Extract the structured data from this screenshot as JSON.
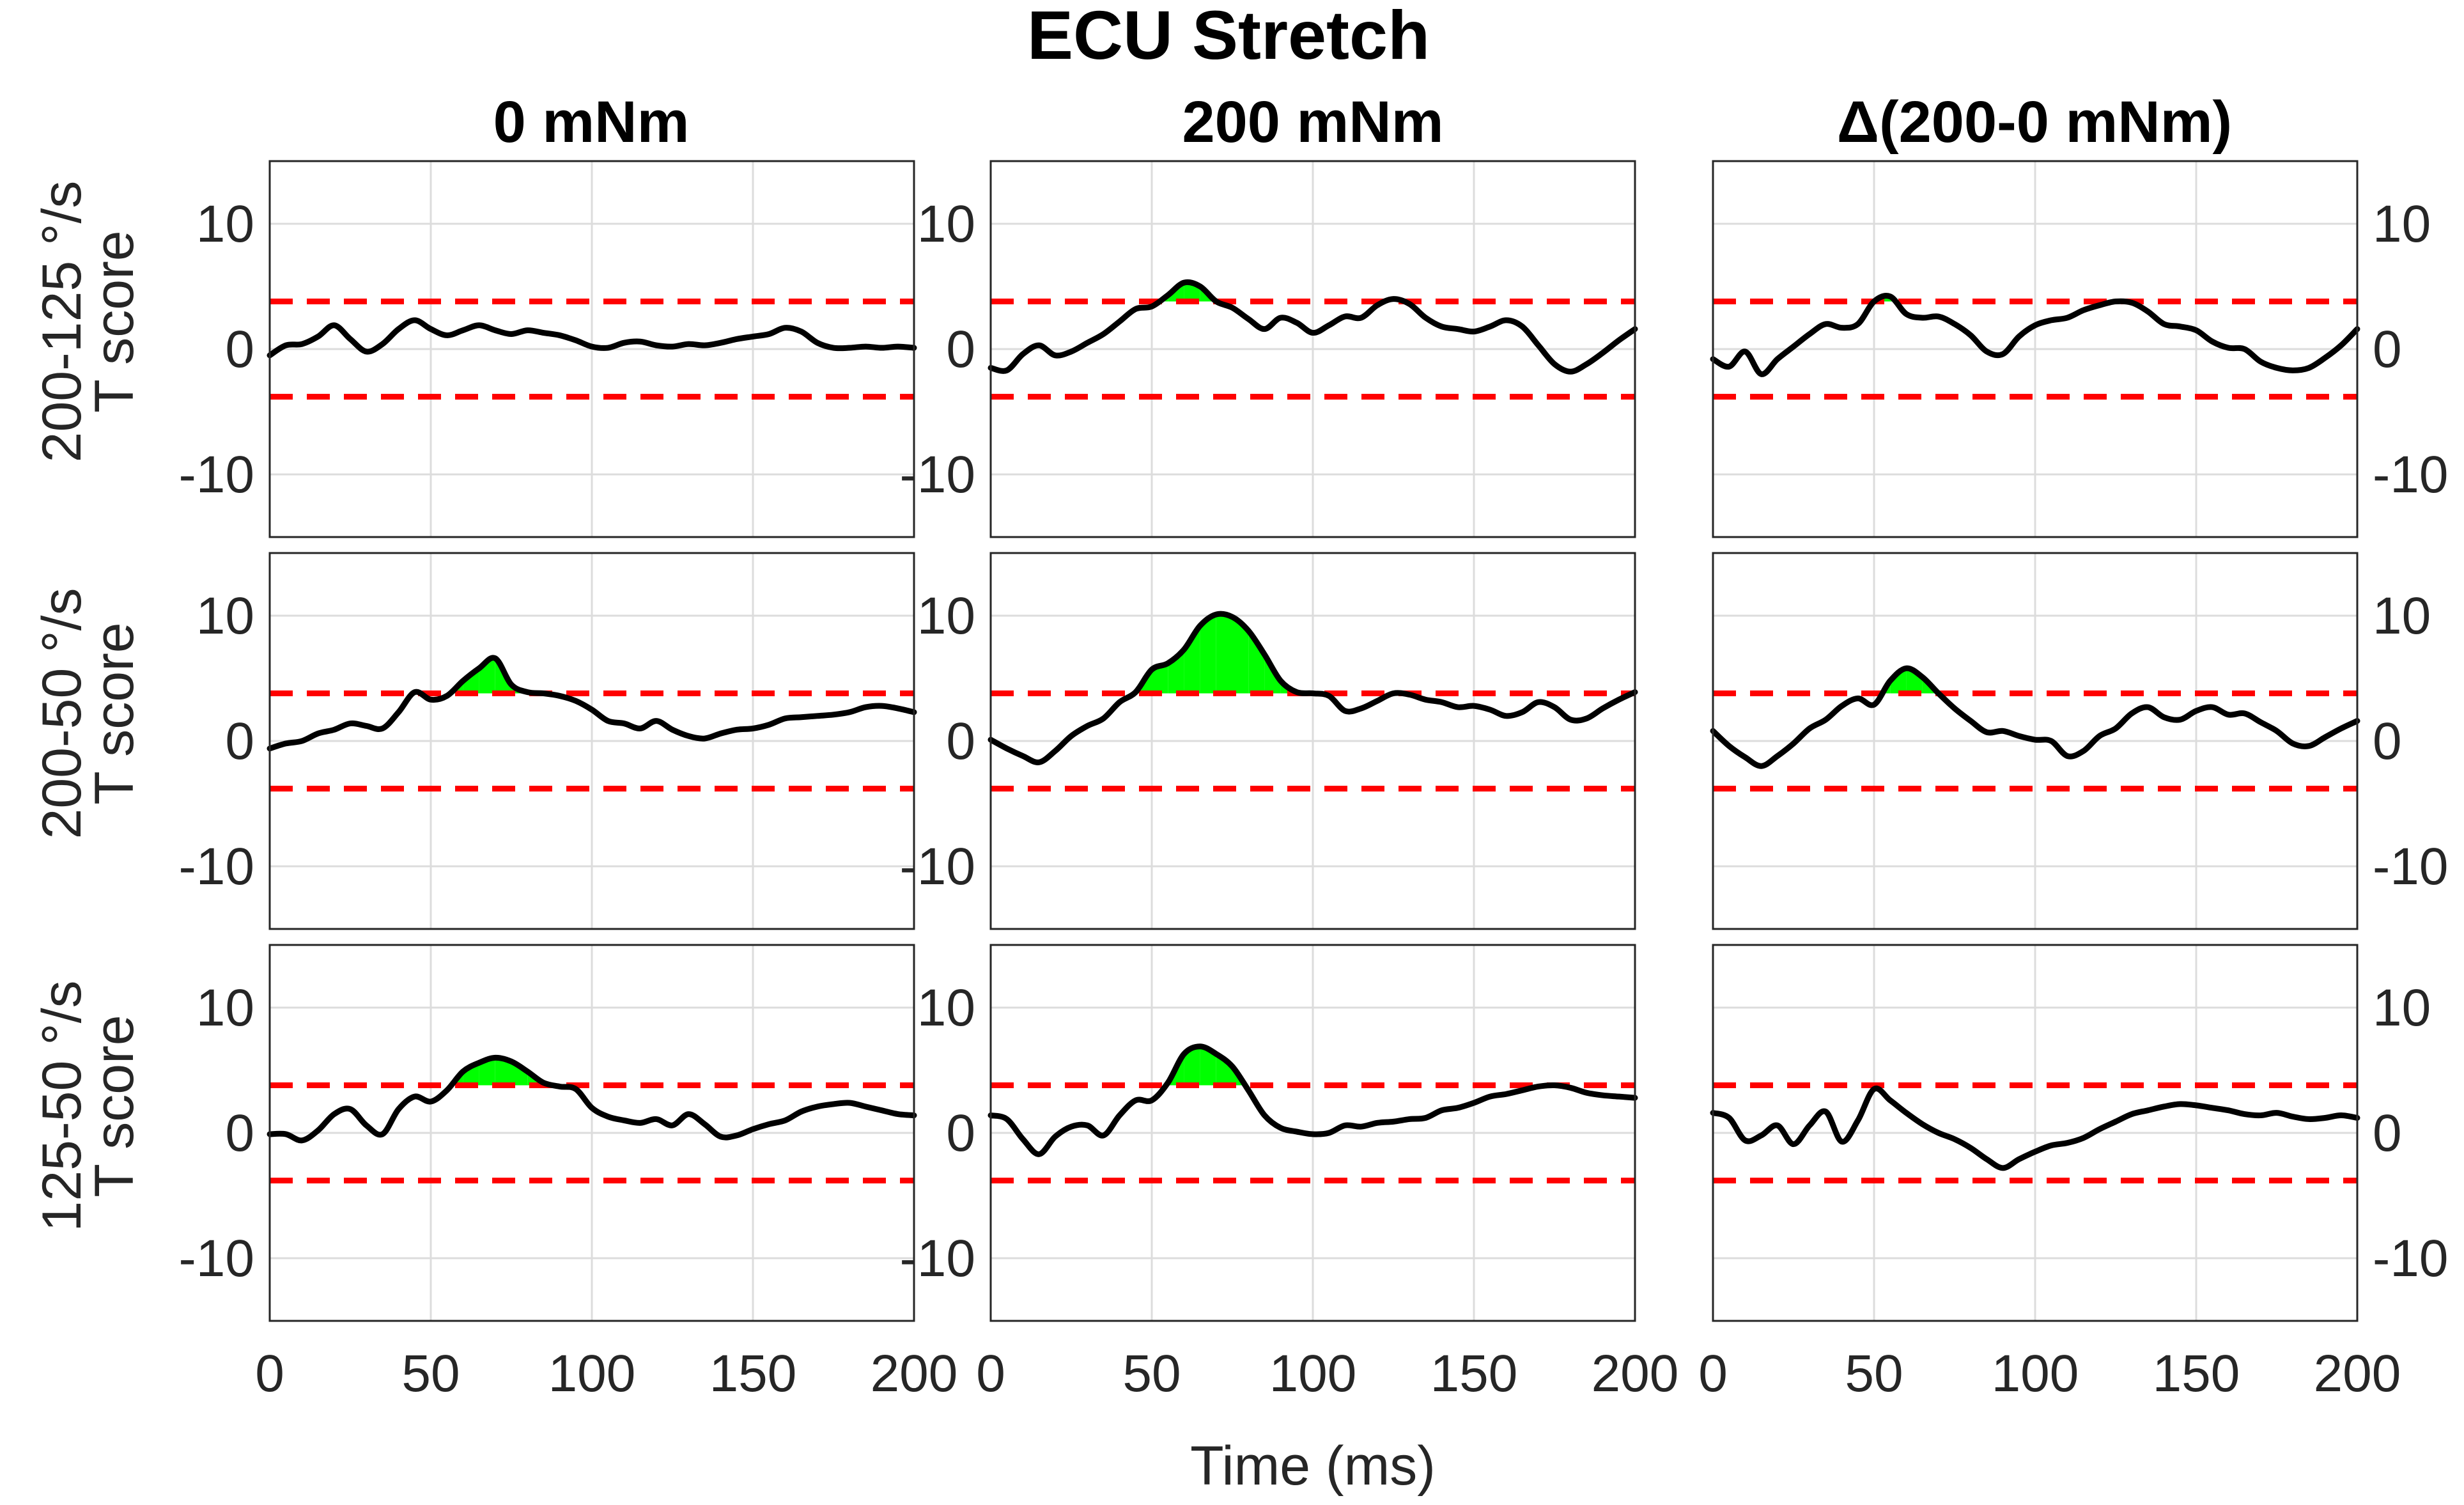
{
  "title": "ECU Stretch",
  "colors": {
    "trace": "#000000",
    "threshold": "#ff0000",
    "significant": "#00ff00",
    "grid": "#dcdcdc"
  },
  "chart_data": {
    "type": "line",
    "title": "ECU Stretch",
    "columns": [
      "0 mNm",
      "200 mNm",
      "Δ(200-0 mNm)"
    ],
    "rows": [
      "200-125 °/s",
      "200-50 °/s",
      "125-50 °/s"
    ],
    "ylabel": "T score",
    "xlabel": "Time (ms)",
    "xlim": [
      0,
      200
    ],
    "ylim": [
      -15,
      15
    ],
    "x_ticks": [
      "0",
      "50",
      "100",
      "150",
      "200"
    ],
    "y_ticks": [
      "10",
      "0",
      "-10"
    ],
    "y_tick_values": [
      10,
      0,
      -10
    ],
    "x_tick_values": [
      0,
      50,
      100,
      150,
      200
    ],
    "grid": true,
    "x": [
      0,
      5,
      10,
      15,
      20,
      25,
      30,
      35,
      40,
      45,
      50,
      55,
      60,
      65,
      70,
      75,
      80,
      85,
      90,
      95,
      100,
      105,
      110,
      115,
      120,
      125,
      130,
      135,
      140,
      145,
      150,
      155,
      160,
      165,
      170,
      175,
      180,
      185,
      190,
      195,
      200
    ],
    "panels": [
      {
        "row": 0,
        "col": 0,
        "threshold": 3.8,
        "tscore": [
          -0.5,
          0.3,
          0.4,
          1.0,
          1.9,
          0.8,
          -0.2,
          0.4,
          1.6,
          2.3,
          1.6,
          1.1,
          1.5,
          1.9,
          1.5,
          1.2,
          1.5,
          1.3,
          1.1,
          0.7,
          0.2,
          0.1,
          0.5,
          0.6,
          0.3,
          0.2,
          0.4,
          0.3,
          0.5,
          0.8,
          1.0,
          1.2,
          1.7,
          1.4,
          0.5,
          0.1,
          0.1,
          0.2,
          0.1,
          0.2,
          0.1
        ]
      },
      {
        "row": 0,
        "col": 1,
        "threshold": 3.8,
        "tscore": [
          -1.5,
          -1.7,
          -0.4,
          0.3,
          -0.5,
          -0.2,
          0.5,
          1.2,
          2.2,
          3.2,
          3.4,
          4.3,
          5.3,
          5.0,
          3.8,
          3.3,
          2.4,
          1.6,
          2.5,
          2.1,
          1.3,
          1.9,
          2.6,
          2.5,
          3.5,
          4.0,
          3.6,
          2.5,
          1.8,
          1.6,
          1.4,
          1.8,
          2.3,
          1.8,
          0.3,
          -1.2,
          -1.8,
          -1.2,
          -0.3,
          0.7,
          1.6
        ]
      },
      {
        "row": 0,
        "col": 2,
        "threshold": 3.8,
        "tscore": [
          -0.8,
          -1.4,
          -0.2,
          -2.0,
          -0.8,
          0.2,
          1.2,
          2.0,
          1.7,
          2.0,
          3.8,
          4.2,
          2.8,
          2.5,
          2.6,
          2.0,
          1.1,
          -0.2,
          -0.4,
          1.0,
          1.9,
          2.3,
          2.5,
          3.1,
          3.5,
          3.8,
          3.7,
          3.0,
          2.0,
          1.8,
          1.5,
          0.6,
          0.1,
          0.0,
          -1.0,
          -1.5,
          -1.7,
          -1.5,
          -0.7,
          0.3,
          1.6
        ]
      },
      {
        "row": 1,
        "col": 0,
        "threshold": 3.8,
        "tscore": [
          -0.6,
          -0.2,
          0.0,
          0.6,
          0.9,
          1.4,
          1.2,
          1.0,
          2.3,
          3.9,
          3.3,
          3.6,
          4.8,
          5.8,
          6.6,
          4.5,
          3.9,
          3.8,
          3.6,
          3.2,
          2.5,
          1.6,
          1.4,
          1.0,
          1.6,
          0.9,
          0.4,
          0.2,
          0.6,
          0.9,
          1.0,
          1.3,
          1.8,
          1.9,
          2.0,
          2.1,
          2.3,
          2.7,
          2.8,
          2.6,
          2.3
        ]
      },
      {
        "row": 1,
        "col": 1,
        "threshold": 3.8,
        "tscore": [
          0.1,
          -0.6,
          -1.2,
          -1.7,
          -0.8,
          0.4,
          1.2,
          1.8,
          3.1,
          3.9,
          5.7,
          6.2,
          7.3,
          9.2,
          10.1,
          9.9,
          8.8,
          6.9,
          4.8,
          3.9,
          3.8,
          3.6,
          2.4,
          2.6,
          3.2,
          3.8,
          3.7,
          3.3,
          3.1,
          2.7,
          2.8,
          2.5,
          2.0,
          2.3,
          3.1,
          2.7,
          1.7,
          1.8,
          2.6,
          3.3,
          3.9
        ]
      },
      {
        "row": 1,
        "col": 2,
        "threshold": 3.8,
        "tscore": [
          0.8,
          -0.4,
          -1.3,
          -2.0,
          -1.2,
          -0.2,
          1.0,
          1.7,
          2.8,
          3.4,
          2.9,
          4.8,
          5.8,
          5.1,
          3.8,
          2.6,
          1.6,
          0.7,
          0.8,
          0.4,
          0.1,
          0.0,
          -1.2,
          -0.8,
          0.4,
          1.0,
          2.2,
          2.7,
          1.9,
          1.7,
          2.4,
          2.7,
          2.1,
          2.2,
          1.5,
          0.8,
          -0.2,
          -0.4,
          0.3,
          1.0,
          1.6
        ]
      },
      {
        "row": 2,
        "col": 0,
        "threshold": 3.8,
        "tscore": [
          -0.1,
          -0.1,
          -0.6,
          0.2,
          1.5,
          1.9,
          0.6,
          -0.1,
          1.9,
          2.9,
          2.5,
          3.4,
          4.9,
          5.6,
          6.0,
          5.7,
          4.9,
          4.0,
          3.7,
          3.5,
          2.0,
          1.3,
          1.0,
          0.8,
          1.1,
          0.6,
          1.5,
          0.7,
          -0.3,
          -0.2,
          0.3,
          0.7,
          1.0,
          1.7,
          2.1,
          2.3,
          2.4,
          2.1,
          1.8,
          1.5,
          1.4
        ]
      },
      {
        "row": 2,
        "col": 1,
        "threshold": 3.8,
        "tscore": [
          1.4,
          1.1,
          -0.5,
          -1.7,
          -0.3,
          0.5,
          0.6,
          -0.2,
          1.4,
          2.6,
          2.6,
          4.0,
          6.3,
          6.9,
          6.3,
          5.3,
          3.4,
          1.4,
          0.4,
          0.1,
          -0.1,
          0.0,
          0.6,
          0.5,
          0.8,
          0.9,
          1.1,
          1.2,
          1.8,
          2.0,
          2.4,
          2.9,
          3.1,
          3.4,
          3.7,
          3.8,
          3.6,
          3.2,
          3.0,
          2.9,
          2.8
        ]
      },
      {
        "row": 2,
        "col": 2,
        "threshold": 3.8,
        "tscore": [
          1.6,
          1.2,
          -0.6,
          -0.2,
          0.6,
          -0.9,
          0.6,
          1.7,
          -0.7,
          1.0,
          3.5,
          2.6,
          1.6,
          0.7,
          0.0,
          -0.5,
          -1.2,
          -2.1,
          -2.8,
          -2.1,
          -1.5,
          -1.0,
          -0.8,
          -0.4,
          0.3,
          0.9,
          1.5,
          1.8,
          2.1,
          2.3,
          2.2,
          2.0,
          1.8,
          1.5,
          1.4,
          1.6,
          1.3,
          1.1,
          1.2,
          1.4,
          1.2
        ]
      }
    ]
  }
}
